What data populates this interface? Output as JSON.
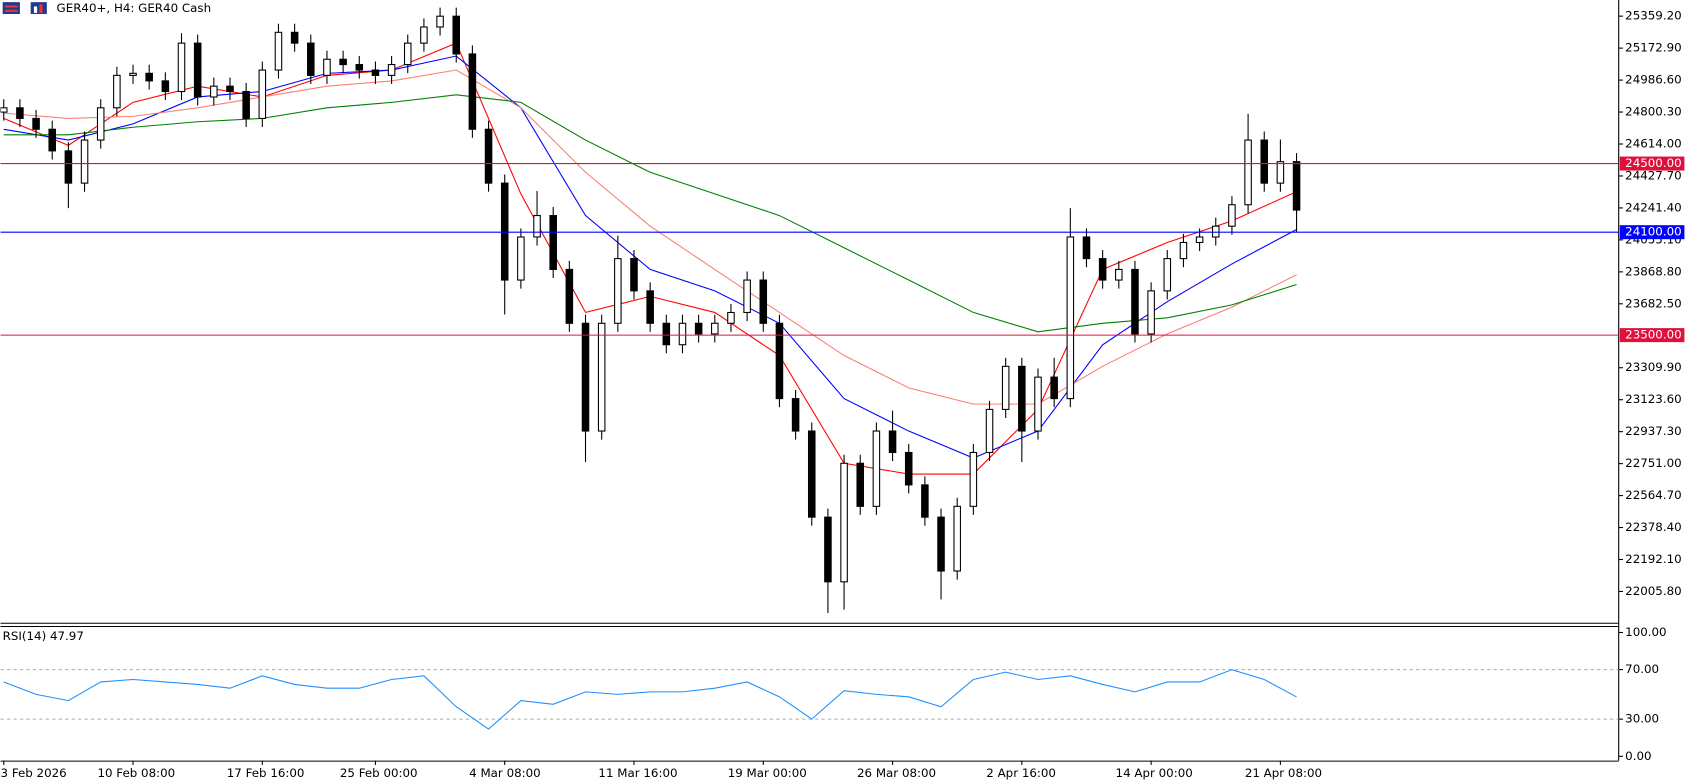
{
  "chart_data": [
    {
      "type": "candlestick",
      "title": "GER40+, H4:  GER40 Cash",
      "categories": [
        "3 Feb 2026",
        null,
        null,
        null,
        null,
        null,
        null,
        null,
        "10 Feb 08:00",
        null,
        null,
        null,
        null,
        null,
        null,
        null,
        "17 Feb 16:00",
        null,
        null,
        null,
        null,
        null,
        null,
        "25 Feb 00:00",
        null,
        null,
        null,
        null,
        null,
        null,
        null,
        "4 Mar 08:00",
        null,
        null,
        null,
        null,
        null,
        null,
        null,
        "11 Mar 16:00",
        null,
        null,
        null,
        null,
        null,
        null,
        null,
        "19 Mar 00:00",
        null,
        null,
        null,
        null,
        null,
        null,
        null,
        "26 Mar 08:00",
        null,
        null,
        null,
        null,
        null,
        null,
        null,
        "2 Apr 16:00",
        null,
        null,
        null,
        null,
        null,
        null,
        null,
        "14 Apr 00:00",
        null,
        null,
        null,
        null,
        null,
        null,
        null,
        "21 Apr 08:00",
        null
      ],
      "open": [
        24800,
        24825,
        24763,
        24700,
        24574,
        24386,
        24637,
        24825,
        25014,
        25026,
        24982,
        24920,
        25202,
        24888,
        24951,
        24920,
        24763,
        25045,
        25265,
        25202,
        25014,
        25108,
        25077,
        25045,
        25014,
        25077,
        25202,
        25296,
        25359,
        25139,
        24700,
        24386,
        23821,
        24072,
        24197,
        23883,
        23569,
        22941,
        23569,
        23946,
        23758,
        23569,
        23444,
        23569,
        23507,
        23569,
        23632,
        23821,
        23569,
        23130,
        22941,
        22439,
        22062,
        22753,
        22502,
        22941,
        22816,
        22627,
        22439,
        22125,
        22502,
        22816,
        23067,
        23318,
        22941,
        23255,
        23130,
        24072,
        23946,
        23821,
        23883,
        23507,
        23758,
        23946,
        24040,
        24072,
        24135,
        24260,
        24637,
        24386,
        24511
      ],
      "high": [
        24875,
        24875,
        24813,
        24750,
        24624,
        24687,
        24875,
        25064,
        25076,
        25076,
        25032,
        25260,
        25252,
        25001,
        25001,
        24970,
        25095,
        25315,
        25315,
        25252,
        25158,
        25158,
        25127,
        25095,
        25127,
        25252,
        25346,
        25409,
        25409,
        25189,
        24750,
        24436,
        24122,
        24340,
        24247,
        23933,
        23619,
        23619,
        24080,
        23996,
        23808,
        23619,
        23619,
        23619,
        23619,
        23682,
        23871,
        23871,
        23619,
        23180,
        22991,
        22489,
        22803,
        22803,
        22991,
        23060,
        22866,
        22677,
        22489,
        22552,
        22866,
        23117,
        23368,
        23368,
        23305,
        23368,
        24240,
        24122,
        23996,
        23933,
        23933,
        23808,
        23996,
        24090,
        24122,
        24185,
        24310,
        24790,
        24687,
        24640,
        24561
      ],
      "low": [
        24750,
        24713,
        24650,
        24524,
        24240,
        24336,
        24587,
        24775,
        24964,
        24932,
        24870,
        24870,
        24838,
        24838,
        24870,
        24713,
        24713,
        24995,
        25152,
        24964,
        24964,
        25027,
        24995,
        24964,
        24964,
        25027,
        25152,
        25246,
        25089,
        24650,
        24336,
        23620,
        23771,
        24022,
        23833,
        23519,
        22760,
        22891,
        23519,
        23708,
        23519,
        23394,
        23394,
        23457,
        23457,
        23519,
        23582,
        23519,
        23080,
        22891,
        22389,
        21880,
        21900,
        22452,
        22452,
        22766,
        22577,
        22389,
        21960,
        22075,
        22452,
        22766,
        23017,
        22760,
        22891,
        23080,
        23080,
        23896,
        23771,
        23771,
        23457,
        23457,
        23708,
        23896,
        23990,
        24022,
        24085,
        24210,
        24336,
        24336,
        24100
      ],
      "close": [
        24825,
        24763,
        24700,
        24574,
        24386,
        24637,
        24825,
        25014,
        25026,
        24982,
        24920,
        25202,
        24888,
        24951,
        24920,
        24763,
        25045,
        25265,
        25202,
        25014,
        25108,
        25077,
        25045,
        25014,
        25077,
        25202,
        25296,
        25359,
        25139,
        24700,
        24386,
        23821,
        24072,
        24197,
        23883,
        23569,
        22941,
        23569,
        23946,
        23758,
        23569,
        23444,
        23569,
        23507,
        23569,
        23632,
        23821,
        23569,
        23130,
        22941,
        22439,
        22062,
        22753,
        22502,
        22941,
        22816,
        22627,
        22439,
        22125,
        22502,
        22816,
        23067,
        23318,
        22941,
        23255,
        23130,
        24072,
        23946,
        23821,
        23883,
        23507,
        23758,
        23946,
        24040,
        24072,
        24135,
        24260,
        24637,
        24386,
        24511,
        24229
      ],
      "series": [
        {
          "color": "#ff0000",
          "x": [
            0,
            4,
            8,
            12,
            16,
            20,
            24,
            28,
            32,
            36,
            40,
            44,
            48,
            52,
            56,
            60,
            64,
            68,
            72,
            76,
            80
          ],
          "values": [
            24763,
            24606,
            24857,
            24951,
            24888,
            25014,
            25045,
            25202,
            24323,
            23632,
            23726,
            23632,
            23381,
            22753,
            22690,
            22690,
            23067,
            23883,
            24040,
            24166,
            24336
          ]
        },
        {
          "color": "#0000ff",
          "x": [
            0,
            4,
            8,
            12,
            16,
            20,
            24,
            28,
            32,
            36,
            40,
            44,
            48,
            52,
            56,
            60,
            64,
            68,
            72,
            76,
            80
          ],
          "values": [
            24700,
            24637,
            24731,
            24888,
            24920,
            25026,
            25045,
            25127,
            24825,
            24197,
            23883,
            23758,
            23569,
            23130,
            22941,
            22784,
            22941,
            23444,
            23695,
            23915,
            24116
          ]
        },
        {
          "color": "#fa8072",
          "x": [
            0,
            4,
            8,
            12,
            16,
            20,
            24,
            28,
            32,
            36,
            40,
            44,
            48,
            52,
            56,
            60,
            64,
            68,
            72,
            76,
            80
          ],
          "values": [
            24794,
            24763,
            24775,
            24825,
            24888,
            24951,
            24982,
            25045,
            24825,
            24449,
            24135,
            23883,
            23632,
            23381,
            23193,
            23098,
            23098,
            23318,
            23507,
            23663,
            23852
          ]
        },
        {
          "color": "#008000",
          "x": [
            0,
            4,
            8,
            12,
            16,
            20,
            24,
            28,
            32,
            36,
            40,
            44,
            48,
            52,
            56,
            60,
            64,
            68,
            72,
            76,
            80
          ],
          "values": [
            24668,
            24668,
            24712,
            24744,
            24763,
            24825,
            24857,
            24901,
            24857,
            24637,
            24449,
            24323,
            24197,
            24009,
            23821,
            23632,
            23519,
            23569,
            23601,
            23676,
            23795
          ]
        }
      ],
      "levels": [
        {
          "value": 24500,
          "label": "24500.00",
          "color": "#e0103c"
        },
        {
          "value": 24100,
          "label": "24100.00",
          "color": "#0000ff"
        },
        {
          "value": 23500,
          "label": "23500.00",
          "color": "#e0103c"
        }
      ],
      "ylim": [
        21823.7,
        25453.4
      ],
      "yticks": [
        {
          "value": 25359.2,
          "label": "25359.20"
        },
        {
          "value": 25172.9,
          "label": "25172.90"
        },
        {
          "value": 24986.6,
          "label": "24986.60"
        },
        {
          "value": 24800.3,
          "label": "24800.30"
        },
        {
          "value": 24614,
          "label": "24614.00"
        },
        {
          "value": 24427.7,
          "label": "24427.70"
        },
        {
          "value": 24241.4,
          "label": "24241.40"
        },
        {
          "value": 24055.1,
          "label": "24055.10"
        },
        {
          "value": 23868.8,
          "label": "23868.80"
        },
        {
          "value": 23682.5,
          "label": "23682.50"
        },
        {
          "value": 23309.9,
          "label": "23309.90"
        },
        {
          "value": 23123.6,
          "label": "23123.60"
        },
        {
          "value": 22937.3,
          "label": "22937.30"
        },
        {
          "value": 22751,
          "label": "22751.00"
        },
        {
          "value": 22564.7,
          "label": "22564.70"
        },
        {
          "value": 22378.4,
          "label": "22378.40"
        },
        {
          "value": 22192.1,
          "label": "22192.10"
        },
        {
          "value": 22005.8,
          "label": "22005.80"
        }
      ]
    },
    {
      "type": "line",
      "title": "RSI(14) 47.97",
      "color": "#1e90ff",
      "x": [
        0,
        2,
        4,
        6,
        8,
        10,
        12,
        14,
        16,
        18,
        20,
        22,
        24,
        26,
        28,
        30,
        32,
        34,
        36,
        38,
        40,
        42,
        44,
        46,
        48,
        50,
        52,
        54,
        56,
        58,
        60,
        62,
        64,
        66,
        68,
        70,
        72,
        74,
        76,
        78,
        80
      ],
      "values": [
        60,
        50,
        45,
        60,
        62,
        60,
        58,
        55,
        65,
        58,
        55,
        55,
        62,
        65,
        40,
        22,
        45,
        42,
        52,
        50,
        52,
        52,
        55,
        60,
        48,
        30,
        53,
        50,
        48,
        40,
        62,
        68,
        62,
        65,
        58,
        52,
        60,
        60,
        70,
        62,
        47.97
      ],
      "ylim": [
        -3.5,
        105.3
      ],
      "yticks": [
        {
          "value": 100,
          "label": "100.00"
        },
        {
          "value": 70,
          "label": "70.00"
        },
        {
          "value": 30,
          "label": "30.00"
        },
        {
          "value": 0,
          "label": "0.00"
        }
      ],
      "reference_lines": [
        70,
        30
      ]
    }
  ]
}
